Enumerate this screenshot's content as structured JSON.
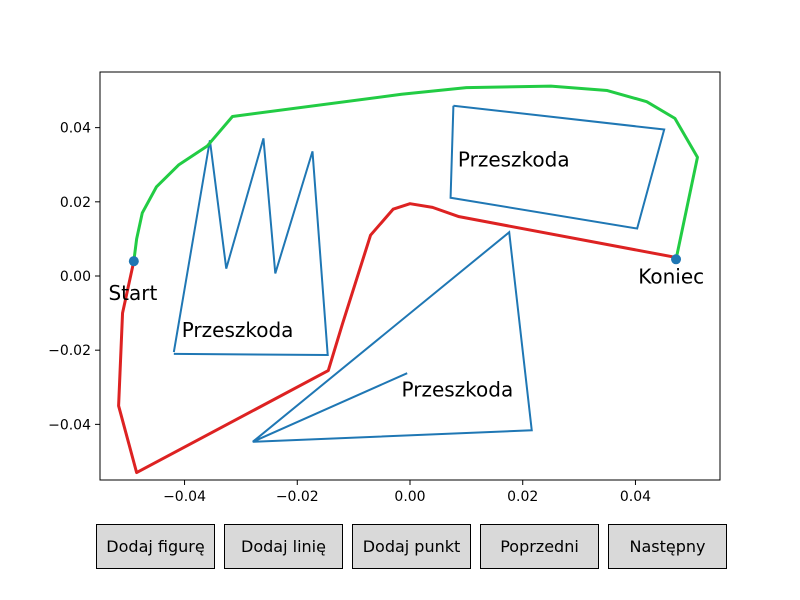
{
  "chart_data": {
    "type": "line",
    "xlim": [
      -0.055,
      0.055
    ],
    "ylim": [
      -0.055,
      0.055
    ],
    "xticks": [
      -0.04,
      -0.02,
      0.0,
      0.02,
      0.04
    ],
    "xtick_labels": [
      "−0.04",
      "−0.02",
      "0.00",
      "0.02",
      "0.04"
    ],
    "yticks": [
      -0.04,
      -0.02,
      0.0,
      0.02,
      0.04
    ],
    "ytick_labels": [
      "−0.04",
      "−0.02",
      "0.00",
      "0.02",
      "0.04"
    ],
    "grid": false,
    "colors": {
      "obstacle": "#1f77b4",
      "path_green": "#22cc44",
      "path_red": "#dd2222",
      "point": "#1f77b4"
    },
    "obstacles": [
      {
        "label": "Przeszkoda",
        "label_pos": [
          -0.0405,
          -0.0165
        ],
        "points": [
          [
            -0.0419,
            -0.0205
          ],
          [
            -0.0355,
            0.0366
          ],
          [
            -0.0326,
            0.002
          ],
          [
            -0.026,
            0.0371
          ],
          [
            -0.0239,
            0.0007
          ],
          [
            -0.0173,
            0.0336
          ],
          [
            -0.0146,
            -0.0213
          ],
          [
            -0.0419,
            -0.021
          ]
        ]
      },
      {
        "label": "Przeszkoda",
        "label_pos": [
          0.0085,
          0.0295
        ],
        "points": [
          [
            0.0077,
            0.0459
          ],
          [
            0.0451,
            0.0395
          ],
          [
            0.0403,
            0.0128
          ],
          [
            0.0072,
            0.0211
          ],
          [
            0.0077,
            0.0459
          ]
        ]
      },
      {
        "label": "Przeszkoda",
        "label_pos": [
          -0.0015,
          -0.0325
        ],
        "points": [
          [
            -0.0279,
            -0.0447
          ],
          [
            0.0176,
            0.0118
          ],
          [
            0.0216,
            -0.0416
          ],
          [
            -0.0279,
            -0.0447
          ],
          [
            -0.0005,
            -0.0262
          ]
        ]
      }
    ],
    "paths": [
      {
        "color": "green",
        "points": [
          [
            -0.049,
            0.004
          ],
          [
            -0.0485,
            0.01
          ],
          [
            -0.0475,
            0.017
          ],
          [
            -0.045,
            0.024
          ],
          [
            -0.041,
            0.03
          ],
          [
            -0.036,
            0.035
          ],
          [
            -0.0315,
            0.043
          ],
          [
            -0.0015,
            0.049
          ],
          [
            0.01,
            0.0508
          ],
          [
            0.025,
            0.0512
          ],
          [
            0.035,
            0.05
          ],
          [
            0.042,
            0.047
          ],
          [
            0.047,
            0.0425
          ],
          [
            0.051,
            0.032
          ],
          [
            0.0472,
            0.0045
          ]
        ]
      },
      {
        "color": "red",
        "points": [
          [
            0.0472,
            0.005
          ],
          [
            0.0087,
            0.016
          ],
          [
            0.004,
            0.0185
          ],
          [
            0.0,
            0.0195
          ],
          [
            -0.003,
            0.018
          ],
          [
            -0.007,
            0.011
          ],
          [
            -0.012,
            -0.013
          ],
          [
            -0.0145,
            -0.0255
          ],
          [
            -0.0485,
            -0.053
          ],
          [
            -0.0517,
            -0.035
          ],
          [
            -0.051,
            -0.01
          ],
          [
            -0.049,
            0.004
          ]
        ]
      }
    ],
    "points": [
      {
        "label": "Start",
        "x": -0.049,
        "y": 0.004,
        "label_pos": [
          -0.0535,
          -0.0065
        ]
      },
      {
        "label": "Koniec",
        "x": 0.0472,
        "y": 0.0045,
        "label_pos": [
          0.0405,
          -0.002
        ]
      }
    ]
  },
  "buttons": [
    {
      "name": "add-figure-button",
      "label": "Dodaj figurę"
    },
    {
      "name": "add-line-button",
      "label": "Dodaj linię"
    },
    {
      "name": "add-point-button",
      "label": "Dodaj punkt"
    },
    {
      "name": "previous-button",
      "label": "Poprzedni"
    },
    {
      "name": "next-button",
      "label": "Następny"
    }
  ]
}
